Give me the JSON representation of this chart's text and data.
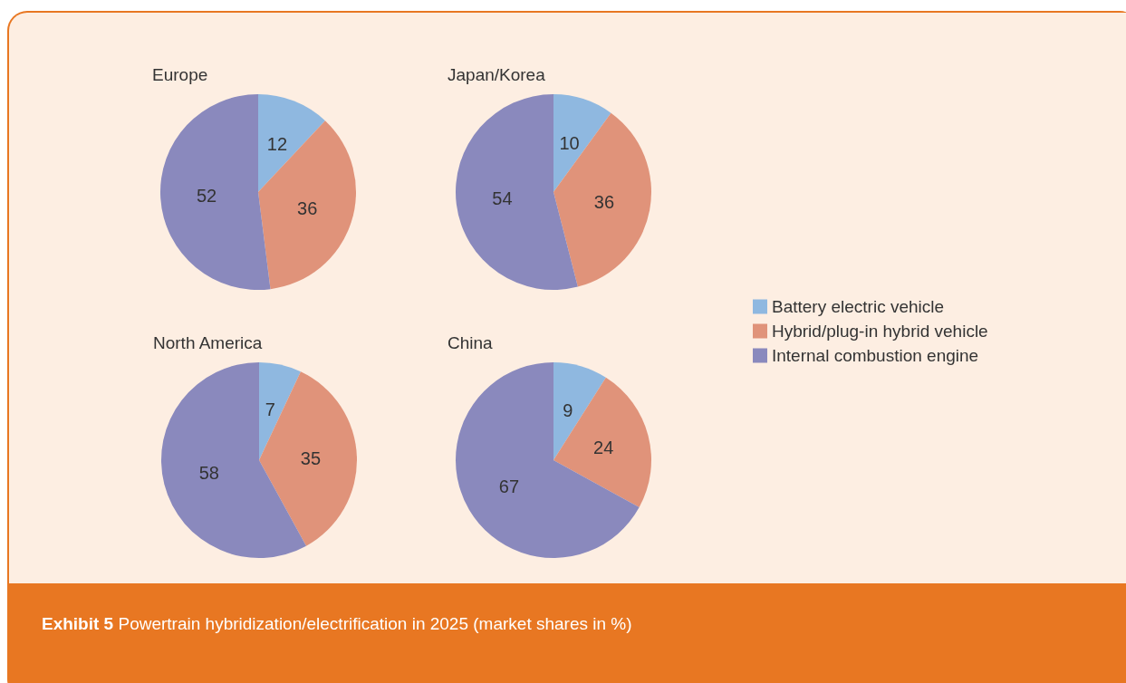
{
  "chart_data": {
    "type": "pie",
    "categories": [
      "Battery electric vehicle",
      "Hybrid/plug-in hybrid vehicle",
      "Internal combustion engine"
    ],
    "colors": [
      "#8fb8e0",
      "#e0937a",
      "#8a89bd"
    ],
    "data_labels": true,
    "legend": "right",
    "series": [
      {
        "name": "Europe",
        "values": [
          12,
          36,
          52
        ]
      },
      {
        "name": "Japan/Korea",
        "values": [
          10,
          36,
          54
        ]
      },
      {
        "name": "North America",
        "values": [
          7,
          35,
          58
        ]
      },
      {
        "name": "China",
        "values": [
          9,
          24,
          67
        ]
      }
    ],
    "annotations": [
      "Exhibit 5 Powertrain hybridization/electrification in 2025 (market shares in %)"
    ]
  }
}
